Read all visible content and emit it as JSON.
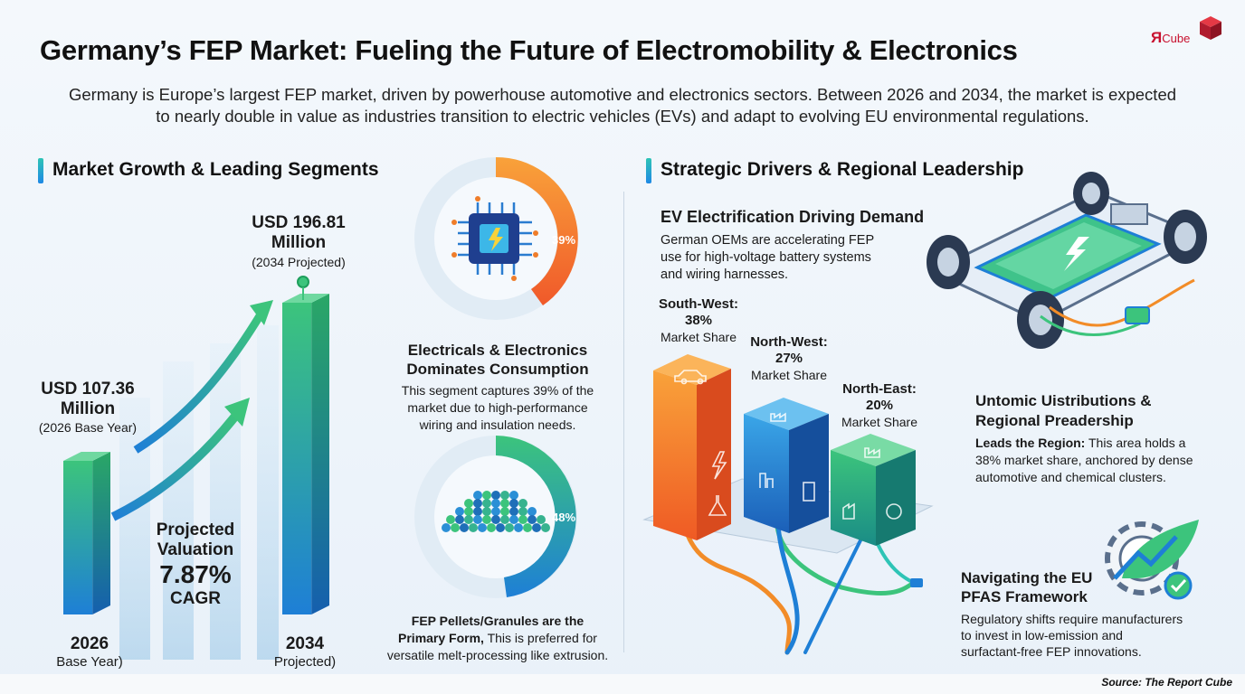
{
  "header": {
    "title": "Germany’s FEP Market: Fueling the Future of Electromobility & Electronics",
    "subtitle_line1": "Germany is Europe’s largest FEP market, driven by powerhouse automotive and electronics sectors. Between 2026 and 2034, the market is expected",
    "subtitle_line2": "to nearly double in value as industries transition to electric vehicles (EVs) and adapt to evolving EU environmental regulations."
  },
  "logo": {
    "mark": "Я",
    "text": "Cube"
  },
  "left_section": {
    "heading": "Market Growth & Leading Segments",
    "value_2034": "USD 196.81",
    "value_2034_unit": "Million",
    "value_2034_note": "(2034 Projected)",
    "value_2026": "USD 107.36",
    "value_2026_unit": "Million",
    "value_2026_note": "(2026 Base Year)",
    "cagr_label1": "Projected",
    "cagr_label2": "Valuation",
    "cagr_value": "7.87%",
    "cagr_unit": "CAGR",
    "year_2026": "2026",
    "year_2026_note": "Base Year)",
    "year_2034": "2034",
    "year_2034_note": "Projected)"
  },
  "segments": {
    "electronics_pct": "39%",
    "electronics_title1": "Electricals & Electronics",
    "electronics_title2": "Dominates Consumption",
    "electronics_desc1": "This segment captures 39% of the",
    "electronics_desc2": "market due to high-performance",
    "electronics_desc3": "wiring and insulation needs.",
    "pellets_pct": "48%",
    "pellets_title": "FEP Pellets/Granules are the",
    "pellets_title2_bold": "Primary Form,",
    "pellets_title2_rest": " This is preferred for",
    "pellets_desc": "versatile melt-processing like extrusion."
  },
  "right_section": {
    "heading": "Strategic Drivers & Regional Leadership",
    "ev_title": "EV Electrification Driving Demand",
    "ev_desc1": "German OEMs are accelerating FEP",
    "ev_desc2": "use for high-voltage battery systems",
    "ev_desc3": "and wiring harnesses.",
    "sw_label": "South-West:",
    "sw_pct": "38%",
    "sw_note": "Market Share",
    "nw_label": "North-West:",
    "nw_pct": "27%",
    "nw_note": "Market Share",
    "ne_label": "North-East:",
    "ne_pct": "20%",
    "ne_note": "Market Share",
    "dist_title1": "Untomic Uistributions &",
    "dist_title2": "Regional Preadership",
    "dist_bold": "Leads the Region:",
    "dist_desc1": " This area holds a",
    "dist_desc2": "38% market share, anchored by dense",
    "dist_desc3": "automotive and chemical clusters.",
    "pfas_title1": "Navigating the EU",
    "pfas_title2": "PFAS Framework",
    "pfas_desc1": "Regulatory shifts require manufacturers",
    "pfas_desc2": "to invest in low-emission and",
    "pfas_desc3": "surfactant-free FEP innovations."
  },
  "chart_data": {
    "type": "bar",
    "categories": [
      "2026",
      "2034"
    ],
    "values": [
      107.36,
      196.81
    ]
  },
  "source": "Source: The Report Cube",
  "colors": {
    "green": "#3cc47c",
    "blue": "#1e7fd6",
    "orange": "#f5772a",
    "teal": "#2ec4b6"
  }
}
